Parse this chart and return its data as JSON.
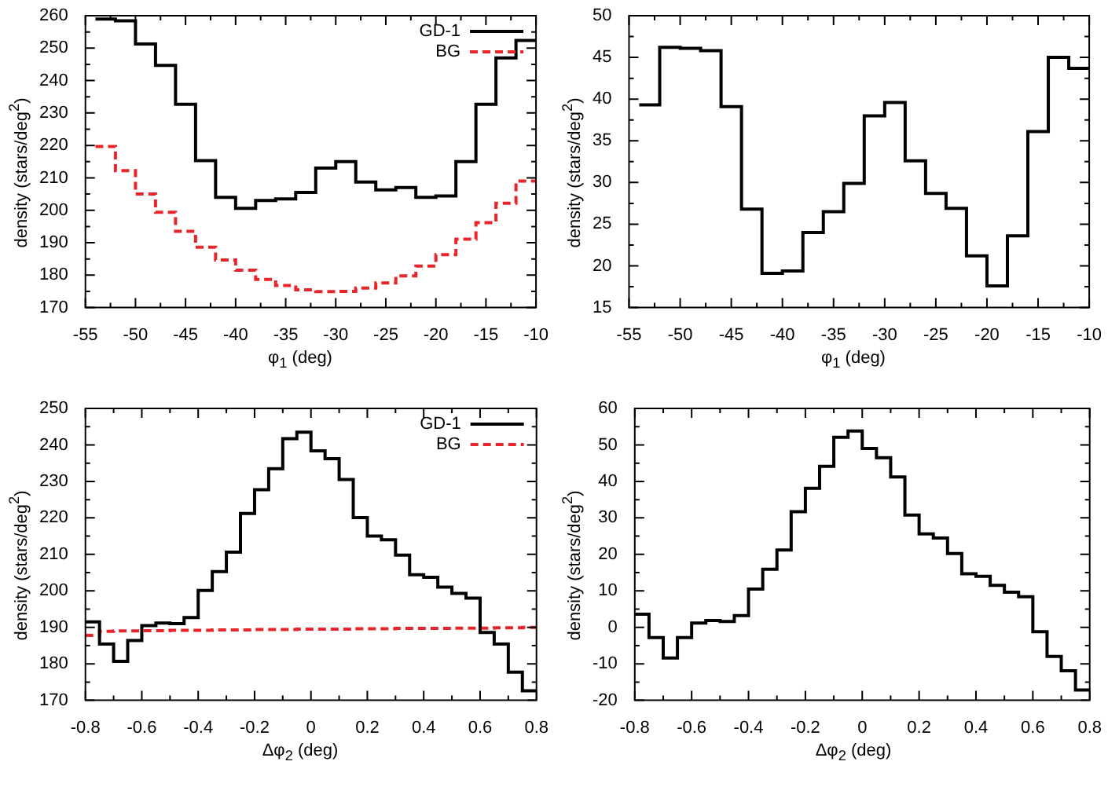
{
  "chart_data": [
    {
      "type": "histogram",
      "xlabel": "φ$_{1}$ (deg)",
      "ylabel": "density (stars/deg$^{2}$)",
      "legend": "top right",
      "xlim": [
        -55,
        -10
      ],
      "xticks": [
        -55,
        -50,
        -45,
        -40,
        -35,
        -30,
        -25,
        -20,
        -15,
        -10
      ],
      "ylim": [
        170,
        260
      ],
      "yticks": [
        170,
        180,
        190,
        200,
        210,
        220,
        230,
        240,
        250,
        260
      ],
      "bins": [
        -54,
        -52,
        -50,
        -48,
        -46,
        -44,
        -42,
        -40,
        -38,
        -36,
        -34,
        -32,
        -30,
        -28,
        -26,
        -24,
        -22,
        -20,
        -18,
        -16,
        -14,
        -12,
        -10
      ],
      "series": [
        {
          "name": "GD-1",
          "color": "#000000",
          "line_style": "solid",
          "values": [
            259,
            258.4,
            251.3,
            244.7,
            232.7,
            215.3,
            204,
            200.6,
            203,
            203.5,
            205.5,
            213,
            215,
            208.7,
            206.3,
            207,
            204,
            204.4,
            215,
            232.7,
            247,
            252.4
          ]
        },
        {
          "name": "BG",
          "color": "#e8262a",
          "line_style": "dashed",
          "values": [
            219.7,
            212.2,
            205,
            199.4,
            193.5,
            188.6,
            184.7,
            181.5,
            178.7,
            176.8,
            175.5,
            174.9,
            175,
            176,
            177.6,
            179.8,
            182.8,
            186.3,
            191.1,
            196.2,
            202.2,
            209
          ]
        }
      ]
    },
    {
      "type": "histogram",
      "xlabel": "φ$_{1}$ (deg)",
      "ylabel": "density (stars/deg$^{2}$)",
      "xlim": [
        -55,
        -10
      ],
      "xticks": [
        -55,
        -50,
        -45,
        -40,
        -35,
        -30,
        -25,
        -20,
        -15,
        -10
      ],
      "ylim": [
        15,
        50
      ],
      "yticks": [
        15,
        20,
        25,
        30,
        35,
        40,
        45,
        50
      ],
      "bins": [
        -54,
        -52,
        -50,
        -48,
        -46,
        -44,
        -42,
        -40,
        -38,
        -36,
        -34,
        -32,
        -30,
        -28,
        -26,
        -24,
        -22,
        -20,
        -18,
        -16,
        -14,
        -12,
        -10
      ],
      "series": [
        {
          "color": "#000000",
          "line_style": "solid",
          "values": [
            39.3,
            46.2,
            46.1,
            45.8,
            39.1,
            26.8,
            19.1,
            19.4,
            24,
            26.5,
            29.9,
            38,
            39.6,
            32.6,
            28.7,
            26.9,
            21.2,
            17.6,
            23.6,
            36.1,
            45,
            43.7
          ]
        }
      ]
    },
    {
      "type": "histogram",
      "xlabel": "Δφ$_{2}$ (deg)",
      "ylabel": "density (stars/deg$^{2}$)",
      "legend": "top right",
      "xlim": [
        -0.8,
        0.8
      ],
      "xticks": [
        -0.8,
        -0.6,
        -0.4,
        -0.2,
        0,
        0.2,
        0.4,
        0.6,
        0.8
      ],
      "ylim": [
        170,
        250
      ],
      "yticks": [
        170,
        180,
        190,
        200,
        210,
        220,
        230,
        240,
        250
      ],
      "bins": [
        -0.8,
        -0.75,
        -0.7,
        -0.65,
        -0.6,
        -0.55,
        -0.5,
        -0.45,
        -0.4,
        -0.35,
        -0.3,
        -0.25,
        -0.2,
        -0.15,
        -0.1,
        -0.05,
        0,
        0.05,
        0.1,
        0.15,
        0.2,
        0.25,
        0.3,
        0.35,
        0.4,
        0.45,
        0.5,
        0.55,
        0.6,
        0.65,
        0.7,
        0.75,
        0.8
      ],
      "series": [
        {
          "name": "GD-1",
          "color": "#000000",
          "line_style": "solid",
          "values": [
            191.5,
            185.4,
            180.7,
            186.4,
            190.5,
            191.2,
            191,
            192.7,
            200.1,
            205.3,
            210.6,
            221.2,
            227.7,
            233.5,
            241.7,
            243.5,
            238.4,
            236.2,
            230.5,
            220.1,
            215,
            214,
            209.8,
            204.4,
            203.7,
            201,
            199.3,
            198,
            188.6,
            185.4,
            177.7,
            172.6
          ]
        },
        {
          "name": "BG",
          "color": "#e8262a",
          "line_style": "dashed",
          "values": [
            187.8,
            188.9,
            189,
            189,
            189.1,
            189.1,
            189.2,
            189.2,
            189.2,
            189.3,
            189.3,
            189.3,
            189.4,
            189.4,
            189.4,
            189.5,
            189.5,
            189.5,
            189.5,
            189.6,
            189.6,
            189.6,
            189.7,
            189.7,
            189.7,
            189.7,
            189.8,
            189.8,
            189.8,
            189.9,
            189.9,
            190
          ]
        }
      ]
    },
    {
      "type": "histogram",
      "xlabel": "Δφ$_{2}$ (deg)",
      "ylabel": "density (stars/deg$^{2}$)",
      "xlim": [
        -0.8,
        0.8
      ],
      "xticks": [
        -0.8,
        -0.6,
        -0.4,
        -0.2,
        0,
        0.2,
        0.4,
        0.6,
        0.8
      ],
      "ylim": [
        -20,
        60
      ],
      "yticks": [
        -20,
        -10,
        0,
        10,
        20,
        30,
        40,
        50,
        60
      ],
      "bins": [
        -0.8,
        -0.75,
        -0.7,
        -0.65,
        -0.6,
        -0.55,
        -0.5,
        -0.45,
        -0.4,
        -0.35,
        -0.3,
        -0.25,
        -0.2,
        -0.15,
        -0.1,
        -0.05,
        0,
        0.05,
        0.1,
        0.15,
        0.2,
        0.25,
        0.3,
        0.35,
        0.4,
        0.45,
        0.5,
        0.55,
        0.6,
        0.65,
        0.7,
        0.75,
        0.8
      ],
      "series": [
        {
          "color": "#000000",
          "line_style": "solid",
          "values": [
            3.6,
            -2.8,
            -8.4,
            -2.8,
            1.2,
            1.9,
            1.6,
            3.2,
            10.5,
            15.9,
            21.2,
            31.7,
            38.1,
            44.1,
            52.1,
            53.8,
            49,
            46.5,
            41.2,
            30.8,
            25.6,
            24.5,
            20.2,
            14.7,
            14,
            11.5,
            9.6,
            8.4,
            -1.2,
            -8,
            -11.9,
            -17.2
          ]
        }
      ]
    }
  ]
}
